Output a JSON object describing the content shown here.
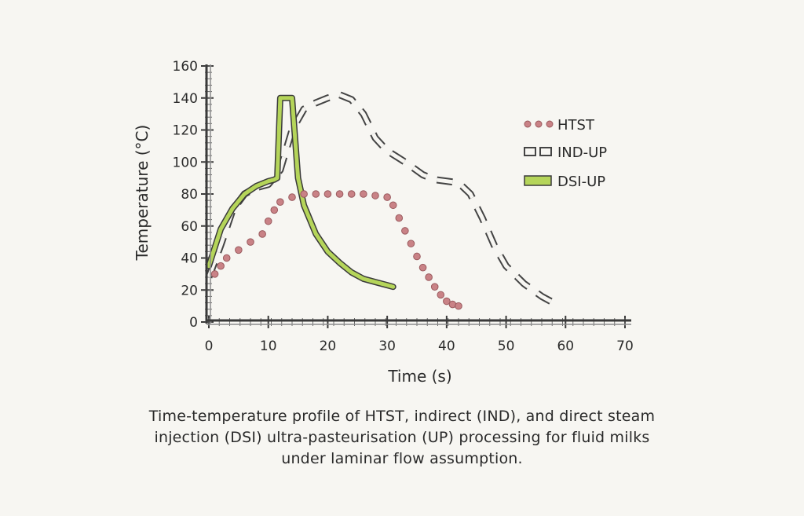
{
  "chart_data": {
    "type": "line",
    "xlabel": "Time (s)",
    "ylabel": "Temperature (°C)",
    "xlim": [
      0,
      70
    ],
    "ylim": [
      0,
      160
    ],
    "xticks": [
      0,
      10,
      20,
      30,
      40,
      50,
      60,
      70
    ],
    "yticks": [
      0,
      20,
      40,
      60,
      80,
      100,
      120,
      140,
      160
    ],
    "legend_position": "top-right",
    "series": [
      {
        "name": "HTST",
        "style": "dotted",
        "color": "#c98286",
        "points": [
          [
            1,
            30
          ],
          [
            2,
            35
          ],
          [
            3,
            40
          ],
          [
            5,
            45
          ],
          [
            7,
            50
          ],
          [
            9,
            55
          ],
          [
            10,
            63
          ],
          [
            11,
            70
          ],
          [
            12,
            75
          ],
          [
            14,
            78
          ],
          [
            16,
            80
          ],
          [
            18,
            80
          ],
          [
            20,
            80
          ],
          [
            22,
            80
          ],
          [
            24,
            80
          ],
          [
            26,
            80
          ],
          [
            28,
            79
          ],
          [
            30,
            78
          ],
          [
            31,
            73
          ],
          [
            32,
            65
          ],
          [
            33,
            57
          ],
          [
            34,
            49
          ],
          [
            35,
            41
          ],
          [
            36,
            34
          ],
          [
            37,
            28
          ],
          [
            38,
            22
          ],
          [
            39,
            17
          ],
          [
            40,
            13
          ],
          [
            41,
            11
          ],
          [
            42,
            10
          ]
        ]
      },
      {
        "name": "IND-UP",
        "style": "dashed",
        "color": "#444444",
        "points": [
          [
            0,
            28
          ],
          [
            2,
            48
          ],
          [
            4,
            70
          ],
          [
            6,
            80
          ],
          [
            8,
            84
          ],
          [
            10,
            86
          ],
          [
            12,
            95
          ],
          [
            14,
            120
          ],
          [
            16,
            133
          ],
          [
            18,
            137
          ],
          [
            20,
            140
          ],
          [
            22,
            142
          ],
          [
            24,
            139
          ],
          [
            26,
            130
          ],
          [
            28,
            115
          ],
          [
            30,
            107
          ],
          [
            33,
            100
          ],
          [
            36,
            92
          ],
          [
            38,
            89
          ],
          [
            40,
            88
          ],
          [
            42,
            87
          ],
          [
            44,
            80
          ],
          [
            46,
            65
          ],
          [
            48,
            48
          ],
          [
            50,
            35
          ],
          [
            53,
            24
          ],
          [
            56,
            16
          ],
          [
            58,
            12
          ],
          [
            59,
            10
          ]
        ]
      },
      {
        "name": "DSI-UP",
        "style": "solid-thick",
        "color": "#b5d55a",
        "points": [
          [
            0,
            35
          ],
          [
            2,
            58
          ],
          [
            4,
            71
          ],
          [
            6,
            80
          ],
          [
            8,
            85
          ],
          [
            10,
            88
          ],
          [
            11,
            89
          ],
          [
            11.5,
            90
          ],
          [
            12,
            140
          ],
          [
            13,
            140
          ],
          [
            14,
            140
          ],
          [
            15,
            90
          ],
          [
            16,
            73
          ],
          [
            18,
            55
          ],
          [
            20,
            44
          ],
          [
            22,
            37
          ],
          [
            24,
            31
          ],
          [
            26,
            27
          ],
          [
            28,
            25
          ],
          [
            30,
            23
          ],
          [
            31,
            22
          ]
        ]
      }
    ],
    "caption": [
      "Time-temperature profile of HTST, indirect (IND), and direct steam",
      "injection (DSI) ultra-pasteurisation (UP) processing for fluid milks",
      "under laminar flow assumption."
    ]
  }
}
